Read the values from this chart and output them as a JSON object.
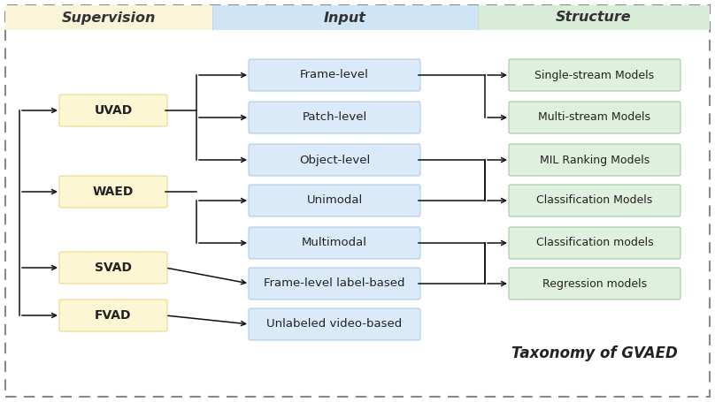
{
  "fig_width": 8.08,
  "fig_height": 4.55,
  "dpi": 100,
  "bg_color": "#ffffff",
  "border_color": "#888888",
  "header_yellow": "#faf4d8",
  "header_blue": "#cfe4f5",
  "header_green": "#d8ecd8",
  "box_yellow": "#fdf6d3",
  "box_blue": "#daeaf8",
  "box_green": "#dff0df",
  "box_edge_yellow": "#e8d888",
  "box_edge_blue": "#b0cce8",
  "box_edge_green": "#a0cca0",
  "header_labels": [
    "Supervision",
    "Input",
    "Structure"
  ],
  "supervision_nodes": [
    "UVAD",
    "WAED",
    "SVAD",
    "FVAD"
  ],
  "input_nodes": [
    "Frame-level",
    "Patch-level",
    "Object-level",
    "Unimodal",
    "Multimodal",
    "Frame-level label-based",
    "Unlabeled video-based"
  ],
  "structure_nodes": [
    "Single-stream Models",
    "Multi-stream Models",
    "MIL Ranking Models",
    "Classification Models",
    "Classification models",
    "Regression models"
  ],
  "footer_text": "Taxonomy of GVAED",
  "arrow_color": "#111111"
}
